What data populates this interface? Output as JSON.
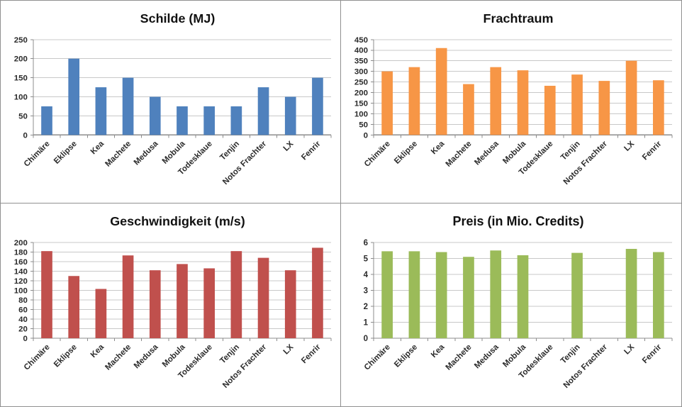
{
  "page": {
    "background_color": "#ffffff",
    "divider_color": "#909090"
  },
  "style": {
    "gridline_color": "#c8c8c8",
    "axis_color": "#8c8c8c",
    "text_color": "#2b2b2b",
    "title_color": "#111111"
  },
  "categories": [
    "Chimäre",
    "Eklipse",
    "Kea",
    "Machete",
    "Medusa",
    "Mobula",
    "Todesklaue",
    "Tenjin",
    "Notos Frachter",
    "LX",
    "Fenrir"
  ],
  "chart_data": [
    {
      "type": "bar",
      "title": "Schilde (MJ)",
      "bar_color": "#4f81bd",
      "categories": [
        "Chimäre",
        "Eklipse",
        "Kea",
        "Machete",
        "Medusa",
        "Mobula",
        "Todesklaue",
        "Tenjin",
        "Notos Frachter",
        "LX",
        "Fenrir"
      ],
      "values": [
        75,
        200,
        125,
        150,
        100,
        75,
        75,
        75,
        125,
        100,
        150
      ],
      "xlabel": "",
      "ylabel": "",
      "ylim": [
        0,
        250
      ],
      "ytick_step": 50,
      "grid": true,
      "legend": false
    },
    {
      "type": "bar",
      "title": "Frachtraum",
      "bar_color": "#f79646",
      "categories": [
        "Chimäre",
        "Eklipse",
        "Kea",
        "Machete",
        "Medusa",
        "Mobula",
        "Todesklaue",
        "Tenjin",
        "Notos Frachter",
        "LX",
        "Fenrir"
      ],
      "values": [
        300,
        320,
        410,
        240,
        320,
        305,
        232,
        285,
        255,
        350,
        258
      ],
      "xlabel": "",
      "ylabel": "",
      "ylim": [
        0,
        450
      ],
      "ytick_step": 50,
      "grid": true,
      "legend": false
    },
    {
      "type": "bar",
      "title": "Geschwindigkeit (m/s)",
      "bar_color": "#c0504d",
      "categories": [
        "Chimäre",
        "Eklipse",
        "Kea",
        "Machete",
        "Medusa",
        "Mobula",
        "Todesklaue",
        "Tenjin",
        "Notos Frachter",
        "LX",
        "Fenrir"
      ],
      "values": [
        182,
        130,
        103,
        173,
        142,
        155,
        146,
        182,
        168,
        142,
        189
      ],
      "xlabel": "",
      "ylabel": "",
      "ylim": [
        0,
        200
      ],
      "ytick_step": 20,
      "grid": true,
      "legend": false
    },
    {
      "type": "bar",
      "title": "Preis (in Mio. Credits)",
      "bar_color": "#9bbb59",
      "categories": [
        "Chimäre",
        "Eklipse",
        "Kea",
        "Machete",
        "Medusa",
        "Mobula",
        "Todesklaue",
        "Tenjin",
        "Notos Frachter",
        "LX",
        "Fenrir"
      ],
      "values": [
        5.45,
        5.45,
        5.4,
        5.1,
        5.5,
        5.2,
        0,
        5.35,
        0,
        5.6,
        5.4
      ],
      "xlabel": "",
      "ylabel": "",
      "ylim": [
        0,
        6
      ],
      "ytick_step": 1,
      "grid": true,
      "legend": false
    }
  ]
}
